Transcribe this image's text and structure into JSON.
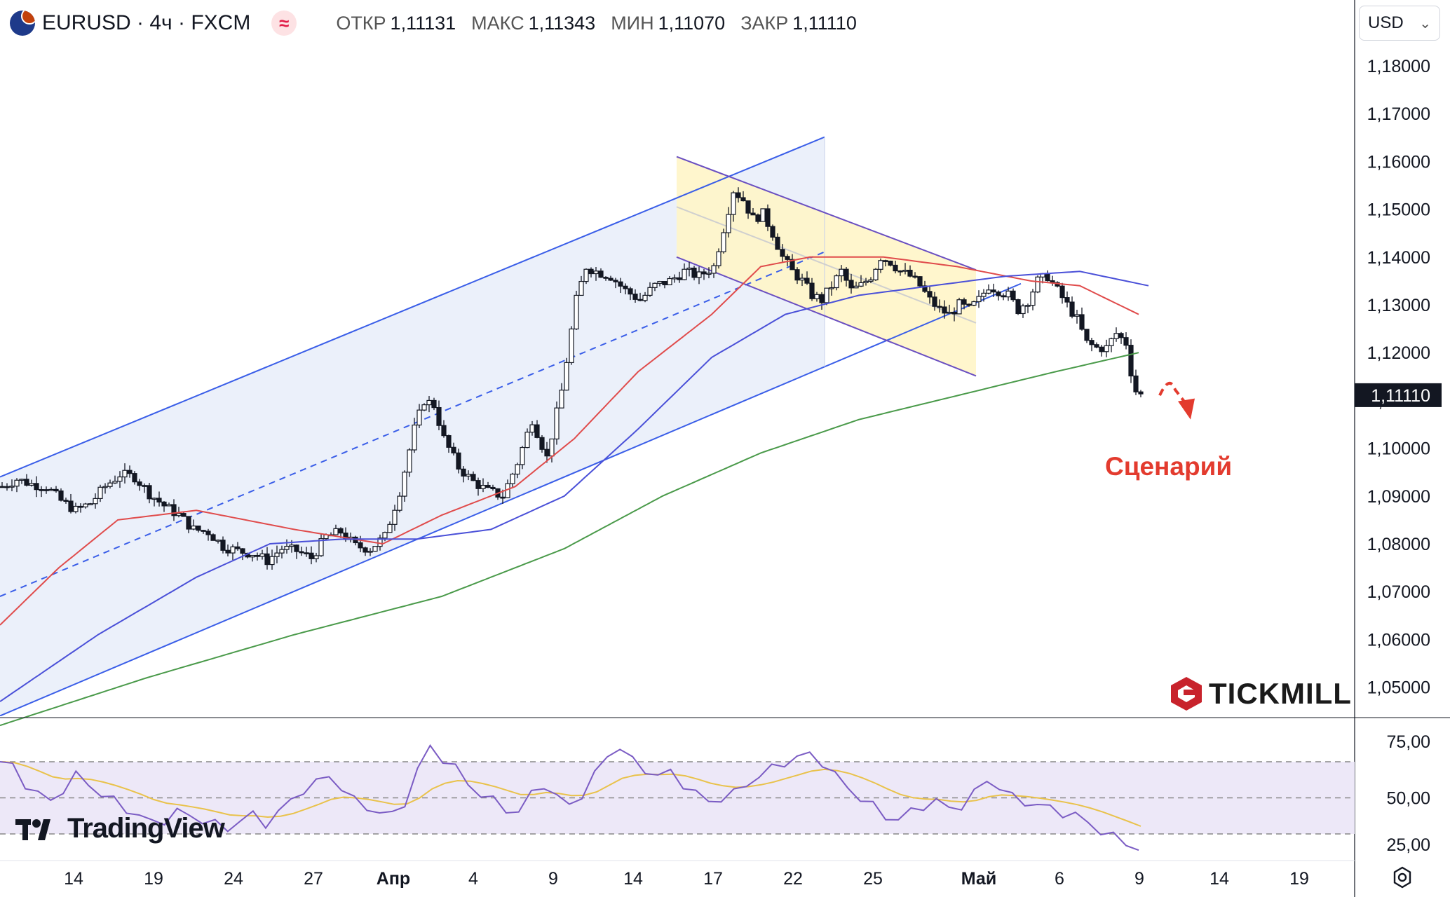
{
  "header": {
    "symbol": "EURUSD · 4ч · FXCM",
    "flag_icon": "eur-usd-flag-icon",
    "indicator_icon": "wave-icon",
    "wave_glyph": "≈",
    "ohlc": [
      {
        "label": "ОТКР",
        "value": "1,11131"
      },
      {
        "label": "МАКС",
        "value": "1,11343"
      },
      {
        "label": "МИН",
        "value": "1,11070"
      },
      {
        "label": "ЗАКР",
        "value": "1,11110"
      }
    ]
  },
  "currency_selector": {
    "value": "USD",
    "chevron": "⌄"
  },
  "annotation": {
    "text": "Сценарий",
    "color": "#e33b2e"
  },
  "branding": {
    "tickmill": "TICKMILL",
    "tradingview": "TradingView"
  },
  "colors": {
    "up_channel_line": "#3a5ee8",
    "up_channel_fill": "#e8edf9",
    "down_channel_fill": "#fff5c8",
    "down_channel_line": "#6a4fc1",
    "ma_red": "#e04b4b",
    "ma_blue": "#4a50d8",
    "ma_green": "#4a9a4a",
    "rsi_line": "#7b5cc4",
    "rsi_signal": "#e9c24b",
    "rsi_band": "#ede8f8",
    "arrow": "#e33b2e"
  },
  "chart_data": {
    "type": "candlestick",
    "symbol": "EURUSD",
    "timeframe": "4ч",
    "price_axis": {
      "ticks": [
        "1,18000",
        "1,17000",
        "1,16000",
        "1,15000",
        "1,14000",
        "1,13000",
        "1,12000",
        "1,11000",
        "1,10000",
        "1,09000",
        "1,08000",
        "1,07000",
        "1,06000",
        "1,05000"
      ],
      "range": [
        1.045,
        1.183
      ],
      "last_price": "1,11110"
    },
    "time_axis": {
      "labels": [
        "14",
        "19",
        "24",
        "27",
        "Апр",
        "4",
        "9",
        "14",
        "17",
        "22",
        "25",
        "Май",
        "6",
        "9",
        "14",
        "19"
      ],
      "bold": [
        "Апр",
        "Май"
      ]
    },
    "price_path": [
      [
        0,
        1.092
      ],
      [
        3,
        1.0935
      ],
      [
        6,
        1.0925
      ],
      [
        9,
        1.092
      ],
      [
        12,
        1.089
      ],
      [
        15,
        1.087
      ],
      [
        18,
        1.0885
      ],
      [
        21,
        1.092
      ],
      [
        24,
        1.0945
      ],
      [
        27,
        1.094
      ],
      [
        30,
        1.0905
      ],
      [
        33,
        1.088
      ],
      [
        36,
        1.086
      ],
      [
        39,
        1.083
      ],
      [
        42,
        1.0825
      ],
      [
        45,
        1.0795
      ],
      [
        48,
        1.0785
      ],
      [
        51,
        1.078
      ],
      [
        54,
        1.0765
      ],
      [
        57,
        1.079
      ],
      [
        60,
        1.0785
      ],
      [
        63,
        1.077
      ],
      [
        66,
        1.0815
      ],
      [
        69,
        1.0825
      ],
      [
        72,
        1.0795
      ],
      [
        75,
        1.079
      ],
      [
        78,
        1.0815
      ],
      [
        81,
        1.091
      ],
      [
        84,
        1.104
      ],
      [
        86,
        1.11
      ],
      [
        88,
        1.109
      ],
      [
        90,
        1.102
      ],
      [
        93,
        1.096
      ],
      [
        96,
        1.093
      ],
      [
        99,
        1.091
      ],
      [
        102,
        1.09
      ],
      [
        105,
        1.097
      ],
      [
        108,
        1.106
      ],
      [
        111,
        1.098
      ],
      [
        114,
        1.112
      ],
      [
        117,
        1.131
      ],
      [
        119,
        1.138
      ],
      [
        121,
        1.137
      ],
      [
        124,
        1.136
      ],
      [
        127,
        1.133
      ],
      [
        130,
        1.131
      ],
      [
        133,
        1.134
      ],
      [
        136,
        1.135
      ],
      [
        139,
        1.137
      ],
      [
        142,
        1.136
      ],
      [
        145,
        1.138
      ],
      [
        147,
        1.146
      ],
      [
        149,
        1.154
      ],
      [
        151,
        1.152
      ],
      [
        153,
        1.148
      ],
      [
        155,
        1.149
      ],
      [
        157,
        1.145
      ],
      [
        159,
        1.14
      ],
      [
        161,
        1.137
      ],
      [
        163,
        1.135
      ],
      [
        165,
        1.132
      ],
      [
        167,
        1.131
      ],
      [
        169,
        1.134
      ],
      [
        171,
        1.137
      ],
      [
        173,
        1.133
      ],
      [
        175,
        1.134
      ],
      [
        177,
        1.136
      ],
      [
        179,
        1.14
      ],
      [
        181,
        1.139
      ],
      [
        183,
        1.137
      ],
      [
        185,
        1.136
      ],
      [
        187,
        1.134
      ],
      [
        189,
        1.131
      ],
      [
        191,
        1.129
      ],
      [
        193,
        1.128
      ],
      [
        195,
        1.13
      ],
      [
        197,
        1.129
      ],
      [
        199,
        1.131
      ],
      [
        201,
        1.134
      ],
      [
        203,
        1.133
      ],
      [
        205,
        1.132
      ],
      [
        207,
        1.129
      ],
      [
        209,
        1.131
      ],
      [
        211,
        1.135
      ],
      [
        213,
        1.136
      ],
      [
        215,
        1.133
      ],
      [
        217,
        1.13
      ],
      [
        219,
        1.127
      ],
      [
        221,
        1.122
      ],
      [
        223,
        1.121
      ],
      [
        225,
        1.121
      ],
      [
        227,
        1.124
      ],
      [
        229,
        1.122
      ],
      [
        230,
        1.116
      ],
      [
        231,
        1.112
      ],
      [
        232,
        1.1111
      ]
    ],
    "candle_count": 233,
    "moving_averages": [
      {
        "color": "red",
        "path": [
          [
            0,
            1.063
          ],
          [
            12,
            1.075
          ],
          [
            24,
            1.085
          ],
          [
            40,
            1.087
          ],
          [
            60,
            1.083
          ],
          [
            78,
            1.08
          ],
          [
            90,
            1.086
          ],
          [
            105,
            1.092
          ],
          [
            117,
            1.102
          ],
          [
            130,
            1.116
          ],
          [
            145,
            1.128
          ],
          [
            155,
            1.138
          ],
          [
            165,
            1.14
          ],
          [
            180,
            1.14
          ],
          [
            195,
            1.138
          ],
          [
            210,
            1.135
          ],
          [
            220,
            1.134
          ],
          [
            232,
            1.128
          ]
        ]
      },
      {
        "color": "blue",
        "path": [
          [
            0,
            1.047
          ],
          [
            20,
            1.061
          ],
          [
            40,
            1.073
          ],
          [
            55,
            1.08
          ],
          [
            70,
            1.081
          ],
          [
            85,
            1.081
          ],
          [
            100,
            1.083
          ],
          [
            115,
            1.09
          ],
          [
            130,
            1.104
          ],
          [
            145,
            1.119
          ],
          [
            160,
            1.128
          ],
          [
            175,
            1.132
          ],
          [
            190,
            1.134
          ],
          [
            205,
            1.136
          ],
          [
            220,
            1.137
          ],
          [
            234,
            1.134
          ]
        ]
      },
      {
        "color": "green",
        "path": [
          [
            0,
            1.042
          ],
          [
            30,
            1.052
          ],
          [
            60,
            1.061
          ],
          [
            90,
            1.069
          ],
          [
            115,
            1.079
          ],
          [
            135,
            1.09
          ],
          [
            155,
            1.099
          ],
          [
            175,
            1.106
          ],
          [
            195,
            1.111
          ],
          [
            215,
            1.116
          ],
          [
            232,
            1.12
          ]
        ]
      }
    ],
    "ascending_channel": {
      "lower_start": [
        0,
        1.044
      ],
      "lower_end": [
        207,
        1.134
      ],
      "upper_start": [
        0,
        1.094
      ],
      "upper_end": [
        215,
        1.185
      ],
      "fill_until": 215
    },
    "descending_channel": {
      "start": 149,
      "end": 252,
      "upper": [
        1.161,
        1.121
      ],
      "lower": [
        1.14,
        1.098
      ]
    },
    "scenario_arrow": {
      "from": [
        234,
        1.1137
      ],
      "to": [
        238,
        1.106
      ]
    },
    "rsi": {
      "ticks": [
        "75,00",
        "50,00",
        "25,00"
      ],
      "levels": [
        70,
        50,
        30
      ],
      "values": [
        70,
        67,
        58,
        52,
        48,
        55,
        62,
        58,
        52,
        48,
        44,
        40,
        36,
        38,
        42,
        40,
        38,
        35,
        33,
        38,
        40,
        36,
        42,
        48,
        55,
        58,
        62,
        56,
        48,
        45,
        42,
        40,
        48,
        65,
        78,
        72,
        66,
        58,
        52,
        48,
        44,
        42,
        52,
        58,
        50,
        46,
        52,
        62,
        74,
        78,
        70,
        66,
        62,
        64,
        58,
        52,
        48,
        50,
        52,
        58,
        62,
        66,
        70,
        72,
        74,
        70,
        62,
        56,
        50,
        45,
        40,
        38,
        42,
        46,
        48,
        44,
        46,
        52,
        60,
        56,
        50,
        48,
        46,
        44,
        42,
        40,
        36,
        32,
        28,
        25,
        22
      ]
    }
  }
}
